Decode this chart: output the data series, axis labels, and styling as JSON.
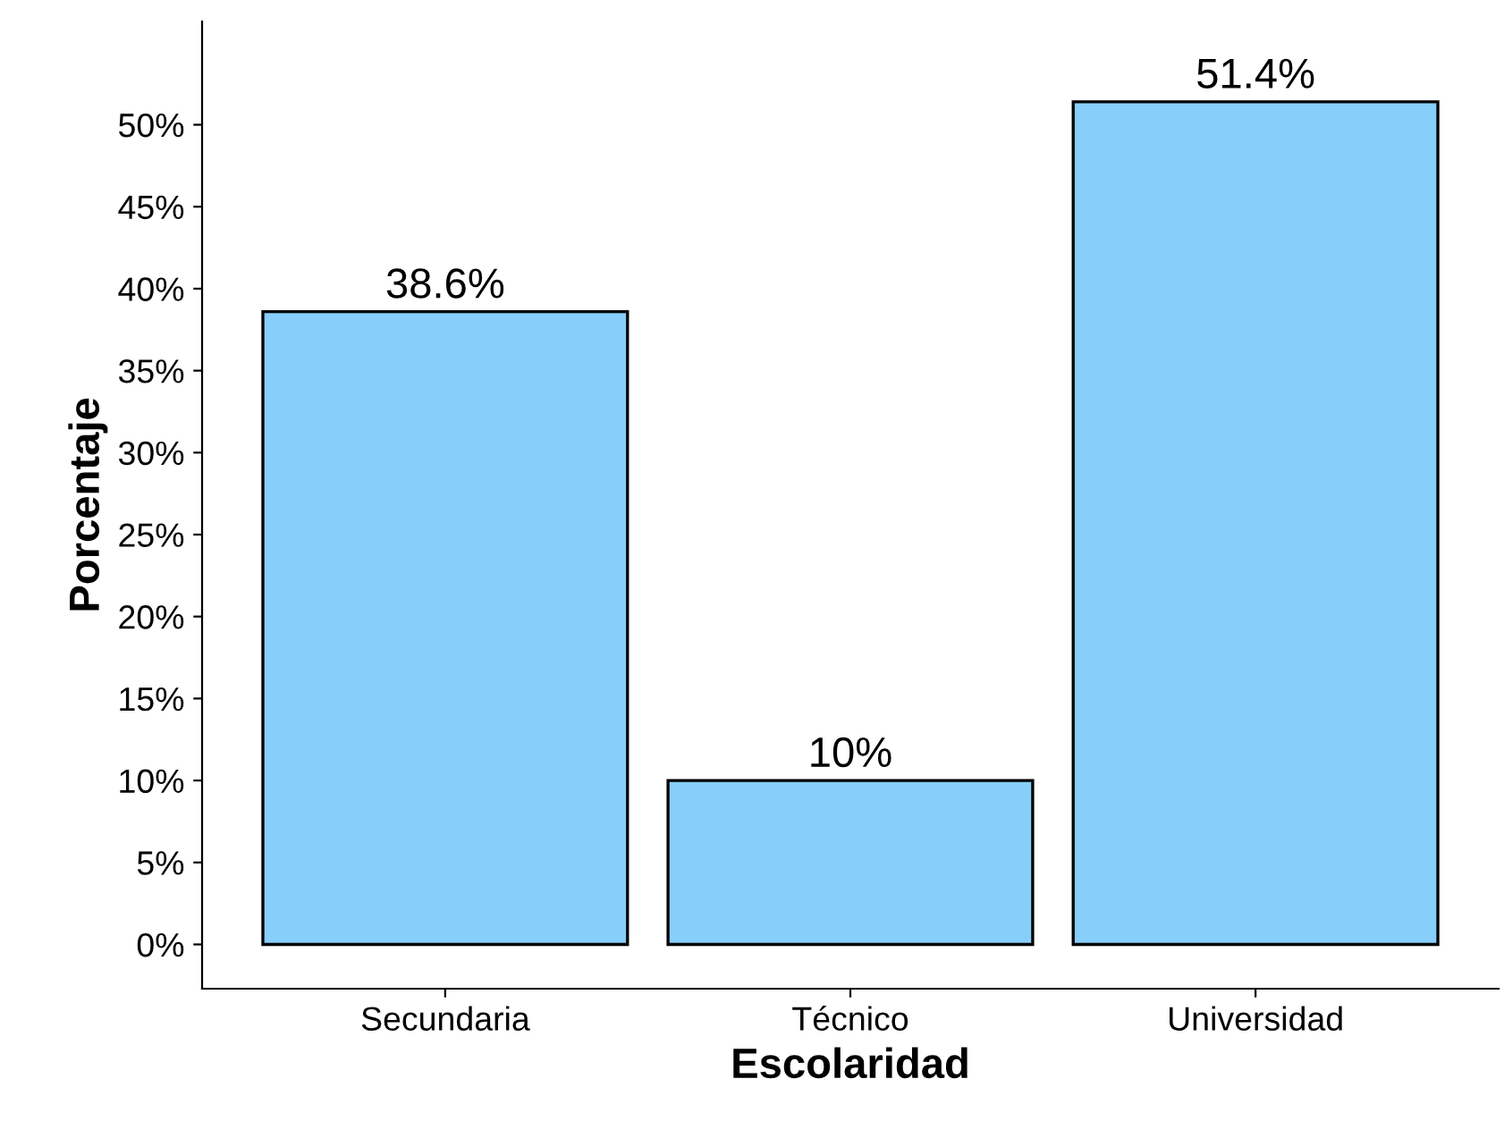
{
  "chart_data": {
    "type": "bar",
    "xlabel": "Escolaridad",
    "ylabel": "Porcentaje",
    "categories": [
      "Secundaria",
      "Técnico",
      "Universidad"
    ],
    "values": [
      38.6,
      10,
      51.4
    ],
    "value_labels": [
      "38.6%",
      "10%",
      "51.4%"
    ],
    "color": "#87cefa",
    "ylim": [
      -2.7,
      56.3
    ],
    "yticks": [
      {
        "value": 0,
        "label": "0%"
      },
      {
        "value": 5,
        "label": "5%"
      },
      {
        "value": 10,
        "label": "10%"
      },
      {
        "value": 15,
        "label": "15%"
      },
      {
        "value": 20,
        "label": "20%"
      },
      {
        "value": 25,
        "label": "25%"
      },
      {
        "value": 30,
        "label": "30%"
      },
      {
        "value": 35,
        "label": "35%"
      },
      {
        "value": 40,
        "label": "40%"
      },
      {
        "value": 45,
        "label": "45%"
      },
      {
        "value": 50,
        "label": "50%"
      }
    ],
    "grid": false,
    "legend": false
  }
}
